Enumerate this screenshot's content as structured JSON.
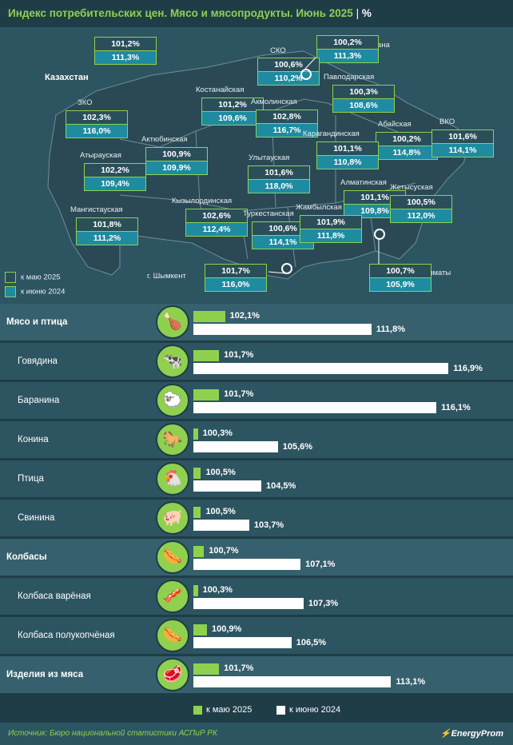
{
  "title": "Индекс потребительских цен. Мясо и мясопродукты. Июнь 2025",
  "title_unit": "%",
  "colors": {
    "may": "#8fd14f",
    "june_prev": "#ffffff",
    "bg": "#1f3d46",
    "map_bg": "#2d5461",
    "box_teal": "#1e8ba0"
  },
  "map": {
    "kazakhstan": {
      "name": "Казахстан",
      "may": "101,2%",
      "june": "111,3%"
    },
    "regions": [
      {
        "name": "г. Астана",
        "may": "100,2%",
        "june": "111,3%"
      },
      {
        "name": "СКО",
        "may": "100,6%",
        "june": "110,2%"
      },
      {
        "name": "Павлодарская",
        "may": "100,3%",
        "june": "108,6%"
      },
      {
        "name": "Костанайская",
        "may": "101,2%",
        "june": "109,6%"
      },
      {
        "name": "Акмолинская",
        "may": "102,8%",
        "june": "116,7%"
      },
      {
        "name": "ЗКО",
        "may": "102,3%",
        "june": "116,0%"
      },
      {
        "name": "Абайская",
        "may": "100,2%",
        "june": "114,8%"
      },
      {
        "name": "ВКО",
        "may": "101,6%",
        "june": "114,1%"
      },
      {
        "name": "Актюбинская",
        "may": "100,9%",
        "june": "109,9%"
      },
      {
        "name": "Карагандинская",
        "may": "101,1%",
        "june": "110,8%"
      },
      {
        "name": "Атырауская",
        "may": "102,2%",
        "june": "109,4%"
      },
      {
        "name": "Улытауская",
        "may": "101,6%",
        "june": "118,0%"
      },
      {
        "name": "Алматинская",
        "may": "101,1%",
        "june": "109,8%"
      },
      {
        "name": "Жетысуская",
        "may": "100,5%",
        "june": "112,0%"
      },
      {
        "name": "Кызылординская",
        "may": "102,6%",
        "june": "112,4%"
      },
      {
        "name": "Мангистауская",
        "may": "101,8%",
        "june": "111,2%"
      },
      {
        "name": "Туркестанская",
        "may": "100,6%",
        "june": "114,1%"
      },
      {
        "name": "Жамбылская",
        "may": "101,9%",
        "june": "111,8%"
      },
      {
        "name": "г. Шымкент",
        "may": "101,7%",
        "june": "116,0%"
      },
      {
        "name": "г. Алматы",
        "may": "100,7%",
        "june": "105,9%"
      }
    ],
    "legend": {
      "may": "к маю 2025",
      "june": "к июню 2024"
    }
  },
  "chart_data": {
    "type": "bar",
    "categories": [
      "Мясо и птица",
      "Говядина",
      "Баранина",
      "Конина",
      "Птица",
      "Свинина",
      "Колбасы",
      "Колбаса варёная",
      "Колбаса полукопчёная",
      "Изделия из мяса"
    ],
    "series": [
      {
        "name": "к маю 2025",
        "values": [
          102.1,
          101.7,
          101.7,
          100.3,
          100.5,
          100.5,
          100.7,
          100.3,
          100.9,
          101.7
        ],
        "labels": [
          "102,1%",
          "101,7%",
          "101,7%",
          "100,3%",
          "100,5%",
          "100,5%",
          "100,7%",
          "100,3%",
          "100,9%",
          "101,7%"
        ]
      },
      {
        "name": "к июню 2024",
        "values": [
          111.8,
          116.9,
          116.1,
          105.6,
          104.5,
          103.7,
          107.1,
          107.3,
          106.5,
          113.1
        ],
        "labels": [
          "111,8%",
          "116,9%",
          "116,1%",
          "105,6%",
          "104,5%",
          "103,7%",
          "107,1%",
          "107,3%",
          "106,5%",
          "113,1%"
        ]
      }
    ],
    "groups": [
      true,
      false,
      false,
      false,
      false,
      false,
      true,
      false,
      false,
      true
    ],
    "icons": [
      "chicken-leg-icon",
      "cow-icon",
      "sheep-icon",
      "horse-icon",
      "hen-icon",
      "pig-icon",
      "sausages-icon",
      "boiled-sausage-icon",
      "smoked-sausage-icon",
      "meat-products-icon"
    ]
  },
  "legend": {
    "may": "к маю 2025",
    "june": "к июню 2024"
  },
  "footer": {
    "source": "Источник: Бюро национальной статистики АСПиР РК",
    "brand": "EnergyProm"
  }
}
